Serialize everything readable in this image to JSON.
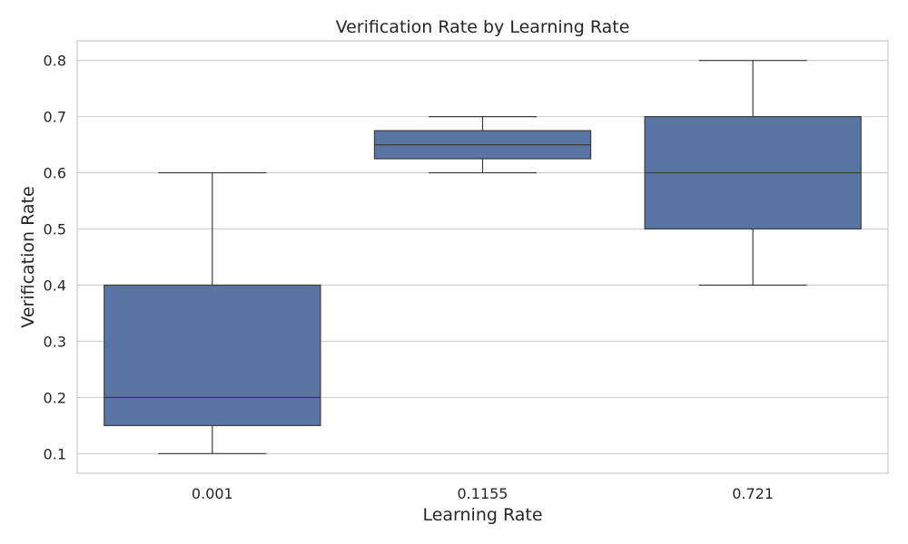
{
  "chart_data": {
    "type": "box",
    "title": "Verification Rate by Learning Rate",
    "xlabel": "Learning Rate",
    "ylabel": "Verification Rate",
    "categories": [
      "0.001",
      "0.1155",
      "0.721"
    ],
    "boxes": [
      {
        "category": "0.001",
        "whisker_low": 0.1,
        "q1": 0.15,
        "median": 0.2,
        "q3": 0.4,
        "whisker_high": 0.6
      },
      {
        "category": "0.1155",
        "whisker_low": 0.6,
        "q1": 0.625,
        "median": 0.65,
        "q3": 0.675,
        "whisker_high": 0.7
      },
      {
        "category": "0.721",
        "whisker_low": 0.4,
        "q1": 0.5,
        "median": 0.6,
        "q3": 0.7,
        "whisker_high": 0.8
      }
    ],
    "yticks": [
      "0.1",
      "0.2",
      "0.3",
      "0.4",
      "0.5",
      "0.6",
      "0.7",
      "0.8"
    ],
    "ylim": [
      0.065,
      0.835
    ],
    "grid": true,
    "style": "seaborn-whitegrid",
    "colors": {
      "box_fill": "#5975a4",
      "line": "#3c3c3c",
      "grid": "#cccccc",
      "frame": "#cccccc",
      "text": "#262626"
    }
  }
}
